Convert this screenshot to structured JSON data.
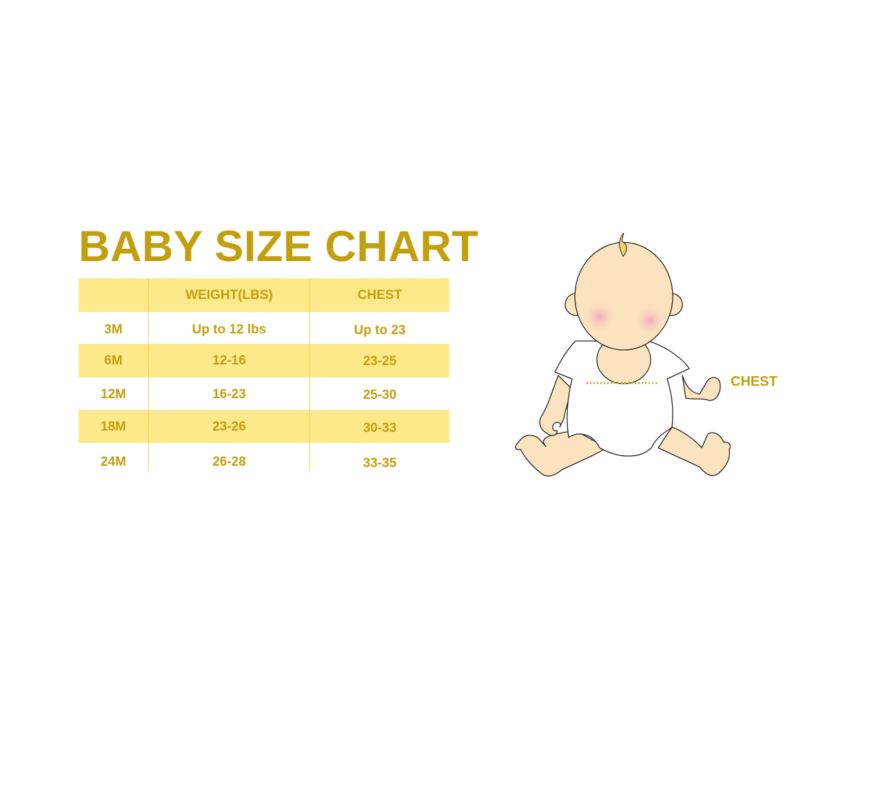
{
  "title": "BABY SIZE CHART",
  "table": {
    "headers": [
      "",
      "WEIGHT(LBS)",
      "CHEST"
    ],
    "rows": [
      {
        "size": "3M",
        "weight": "Up to 12 lbs",
        "chest": "Up to 23"
      },
      {
        "size": "6M",
        "weight": "12-16",
        "chest": "23-25"
      },
      {
        "size": "12M",
        "weight": "16-23",
        "chest": "25-30"
      },
      {
        "size": "18M",
        "weight": "23-26",
        "chest": "30-33"
      },
      {
        "size": "24M",
        "weight": "26-28",
        "chest": "33-35"
      }
    ]
  },
  "illustration": {
    "chest_label": "CHEST"
  },
  "colors": {
    "text_gold": "#c29f0c",
    "band_yellow": "#fde88a",
    "skin": "#fbe3bf"
  }
}
